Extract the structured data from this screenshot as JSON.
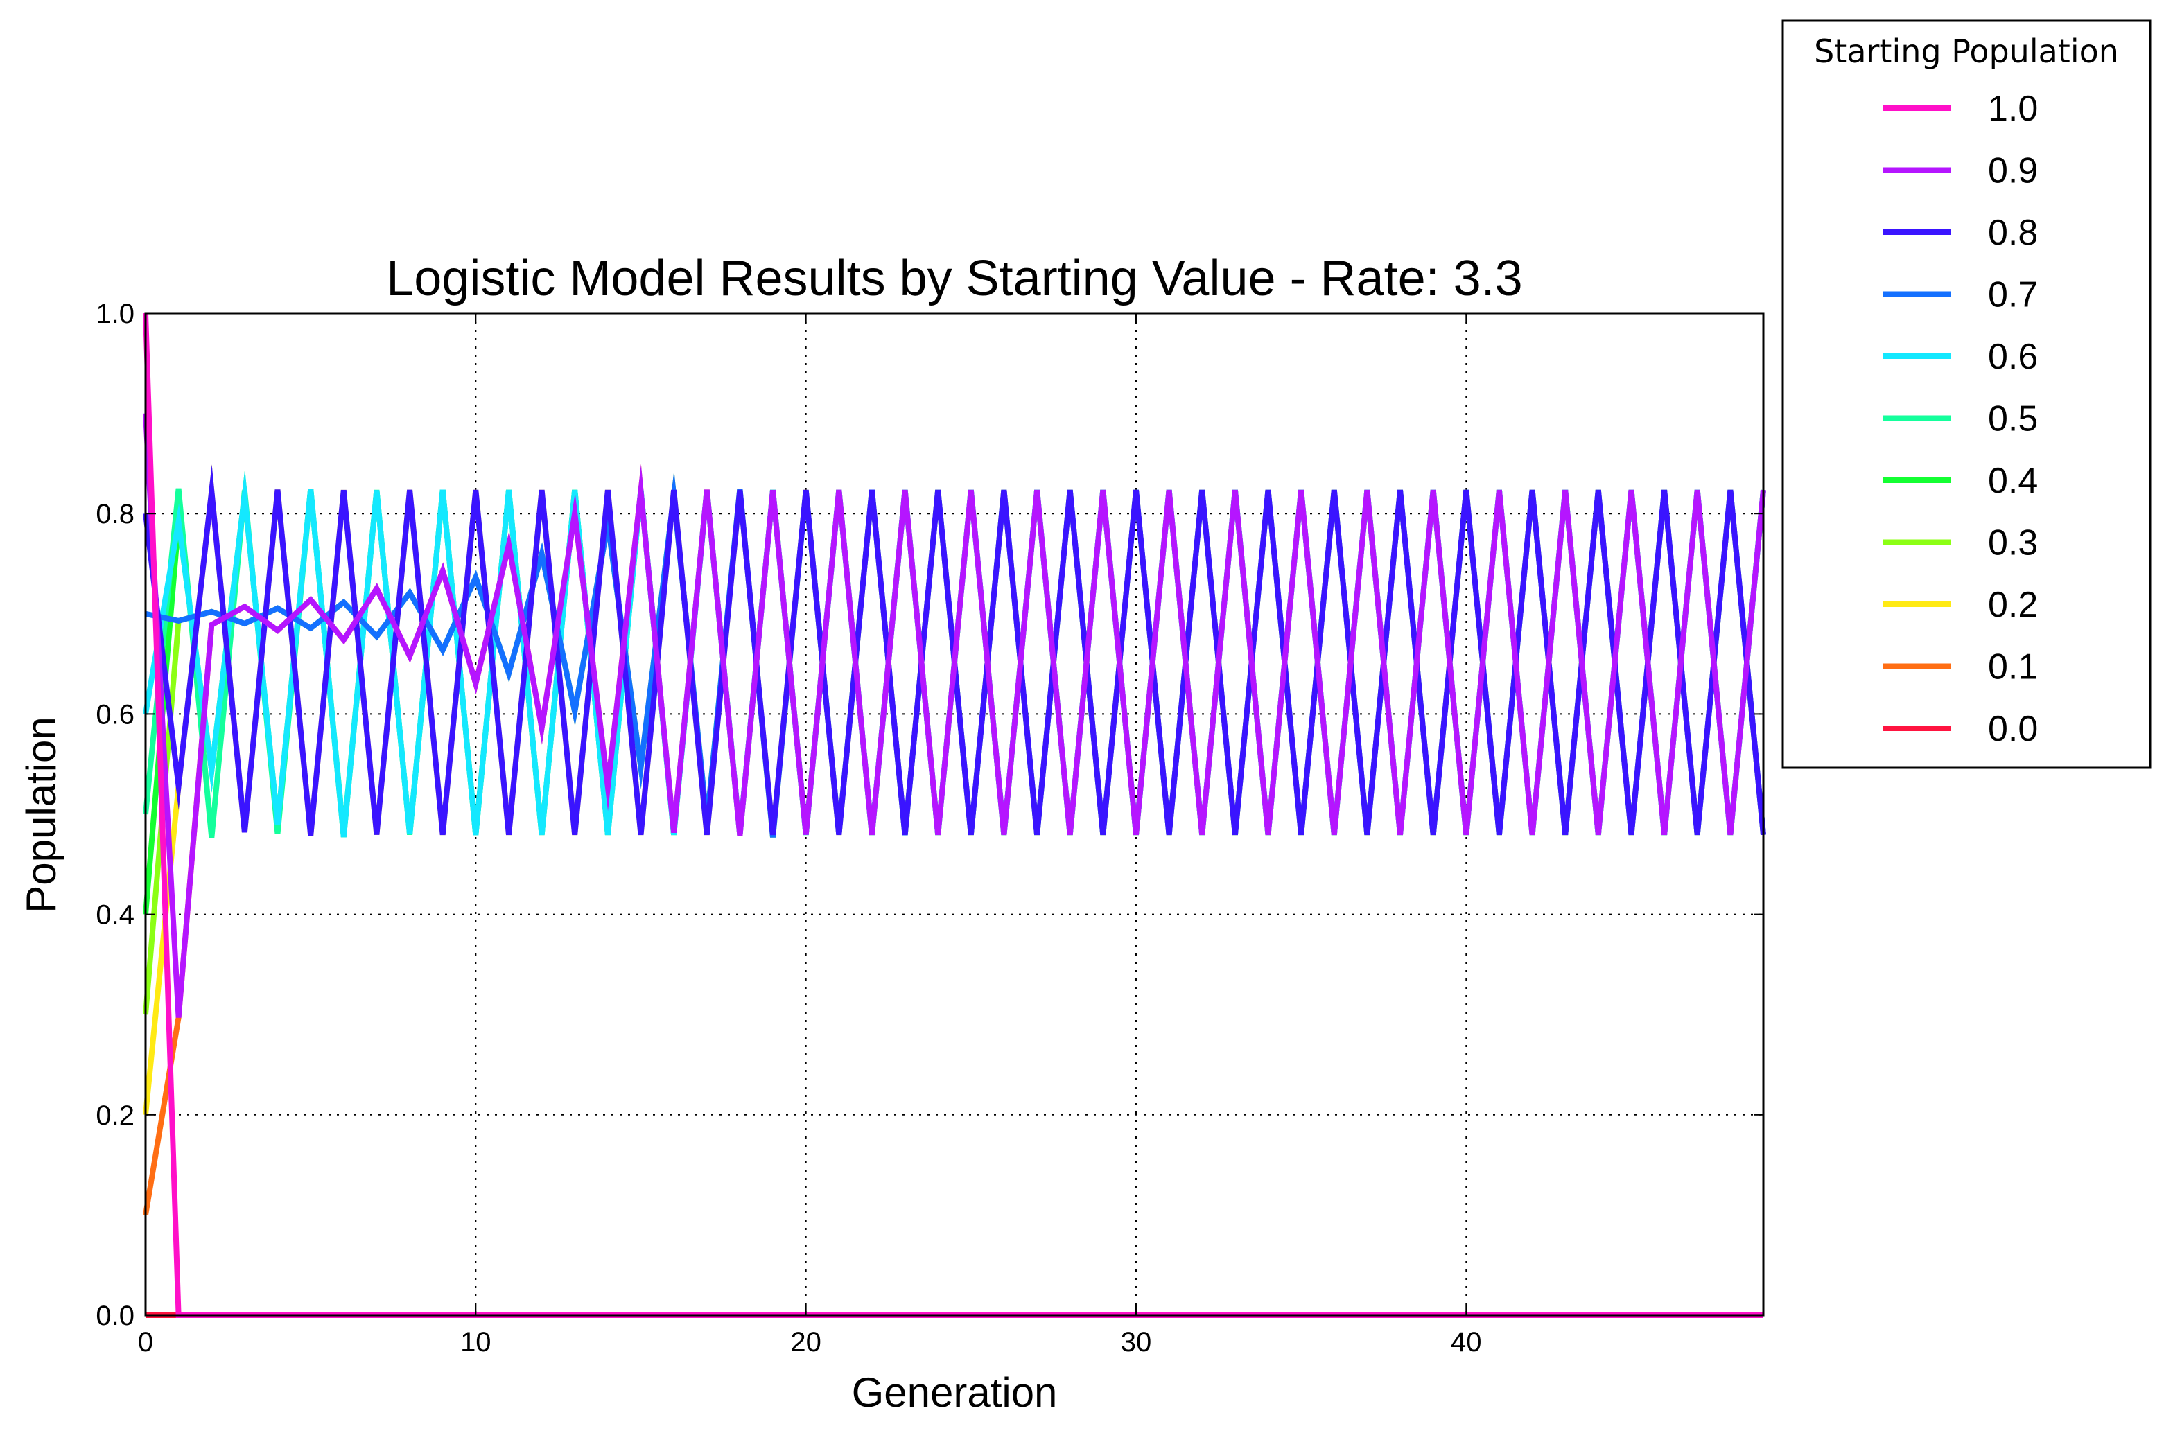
{
  "chart_data": {
    "type": "line",
    "title": "Logistic Model Results by Starting Value - Rate: 3.3",
    "xlabel": "Generation",
    "ylabel": "Population",
    "xlim": [
      0,
      49
    ],
    "ylim": [
      0.0,
      1.0
    ],
    "rate": 3.3,
    "generations": 50,
    "x_ticks": [
      "0",
      "10",
      "20",
      "30",
      "40"
    ],
    "x_tick_values": [
      0,
      10,
      20,
      30,
      40
    ],
    "y_ticks": [
      "0.0",
      "0.2",
      "0.4",
      "0.6",
      "0.8",
      "1.0"
    ],
    "y_tick_values": [
      0.0,
      0.2,
      0.4,
      0.6,
      0.8,
      1.0
    ],
    "grid": true,
    "legend": {
      "title": "Starting Population",
      "placement": "outside-top-right"
    },
    "series": [
      {
        "name": "1.0",
        "start": 1.0,
        "color": "#ff10c8"
      },
      {
        "name": "0.9",
        "start": 0.9,
        "color": "#b515ff"
      },
      {
        "name": "0.8",
        "start": 0.8,
        "color": "#3a14ff"
      },
      {
        "name": "0.7",
        "start": 0.7,
        "color": "#1470ff"
      },
      {
        "name": "0.6",
        "start": 0.6,
        "color": "#14e8ff"
      },
      {
        "name": "0.5",
        "start": 0.5,
        "color": "#14ff9c"
      },
      {
        "name": "0.4",
        "start": 0.4,
        "color": "#14ff32"
      },
      {
        "name": "0.3",
        "start": 0.3,
        "color": "#8cff14"
      },
      {
        "name": "0.2",
        "start": 0.2,
        "color": "#ffea14"
      },
      {
        "name": "0.1",
        "start": 0.1,
        "color": "#ff6e14"
      },
      {
        "name": "0.0",
        "start": 0.0,
        "color": "#ff1440"
      }
    ]
  }
}
